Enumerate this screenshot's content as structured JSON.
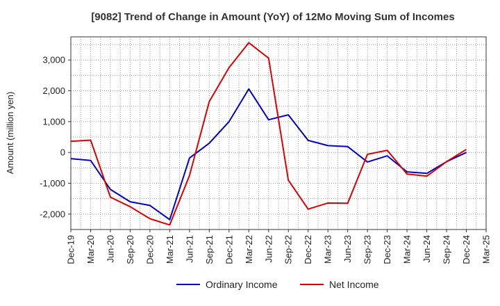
{
  "chart_data": {
    "type": "line",
    "title": "[9082]  Trend of Change in Amount (YoY) of 12Mo Moving Sum of Incomes",
    "xlabel": "",
    "ylabel": "Amount (million yen)",
    "categories": [
      "Dec-19",
      "Mar-20",
      "Jun-20",
      "Sep-20",
      "Dec-20",
      "Mar-21",
      "Jun-21",
      "Sep-21",
      "Dec-21",
      "Mar-22",
      "Jun-22",
      "Sep-22",
      "Dec-22",
      "Mar-23",
      "Jun-23",
      "Sep-23",
      "Dec-23",
      "Mar-24",
      "Jun-24",
      "Sep-24",
      "Dec-24",
      "Mar-25"
    ],
    "ylim": [
      -2500,
      3750
    ],
    "yticks": [
      -2000,
      -1000,
      0,
      1000,
      2000,
      3000
    ],
    "ytick_labels": [
      "-2,000",
      "-1,000",
      "0",
      "1,000",
      "2,000",
      "3,000"
    ],
    "grid": true,
    "legend_position": "bottom",
    "series": [
      {
        "name": "Ordinary Income",
        "color": "#0000cc",
        "values": [
          -200,
          -260,
          -1200,
          -1600,
          -1720,
          -2180,
          -180,
          300,
          1000,
          2060,
          1060,
          1220,
          390,
          220,
          190,
          -310,
          -110,
          -630,
          -680,
          -300,
          0,
          null
        ]
      },
      {
        "name": "Net Income",
        "color": "#dd0000",
        "values": [
          360,
          400,
          -1450,
          -1760,
          -2150,
          -2350,
          -750,
          1650,
          2750,
          3560,
          3060,
          -900,
          -1840,
          -1640,
          -1650,
          -60,
          70,
          -700,
          -770,
          -300,
          100,
          null
        ]
      }
    ]
  }
}
